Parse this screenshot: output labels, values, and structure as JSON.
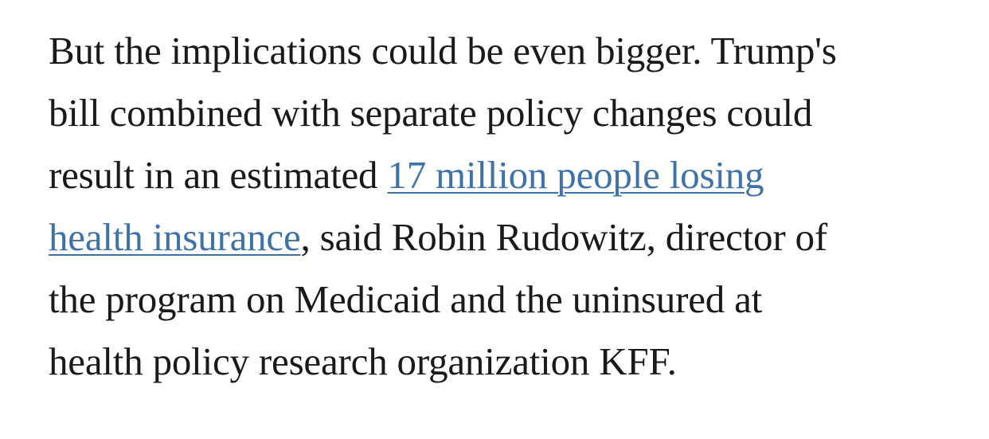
{
  "article": {
    "line1": "But the implications could be even bigger. Trump's",
    "line2": "bill combined with separate policy changes could",
    "line3_text": "result in an estimated ",
    "link": {
      "part1": "17 million people losing",
      "part2": "health insurance"
    },
    "line4_rest": ", said Robin Rudowitz, director of",
    "line5": "the program on Medicaid and the uninsured at",
    "line6": "health policy research organization KFF."
  },
  "colors": {
    "text": "#1a1a1a",
    "link": "#3f72a8",
    "background": "#ffffff"
  }
}
